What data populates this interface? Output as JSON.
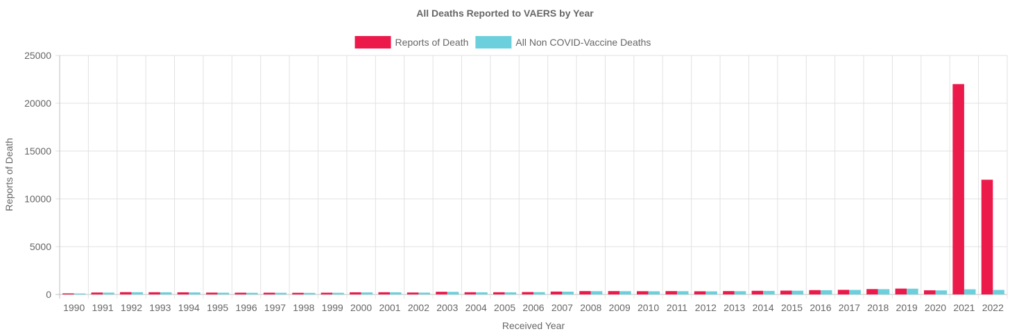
{
  "chart_data": {
    "type": "bar",
    "title": "All Deaths Reported to VAERS by Year",
    "xlabel": "Received Year",
    "ylabel": "Reports of Death",
    "ylim": [
      0,
      25000
    ],
    "yticks": [
      0,
      5000,
      10000,
      15000,
      20000,
      25000
    ],
    "grid": true,
    "legend_position": "top-center",
    "categories": [
      "1990",
      "1991",
      "1992",
      "1993",
      "1994",
      "1995",
      "1996",
      "1997",
      "1998",
      "1999",
      "2000",
      "2001",
      "2002",
      "2003",
      "2004",
      "2005",
      "2006",
      "2007",
      "2008",
      "2009",
      "2010",
      "2011",
      "2012",
      "2013",
      "2014",
      "2015",
      "2016",
      "2017",
      "2018",
      "2019",
      "2020",
      "2021",
      "2022"
    ],
    "series": [
      {
        "name": "Reports of Death",
        "color": "#ec194b",
        "values": [
          110,
          200,
          240,
          230,
          220,
          190,
          180,
          180,
          170,
          180,
          220,
          230,
          200,
          280,
          230,
          230,
          250,
          300,
          350,
          350,
          340,
          350,
          330,
          350,
          380,
          400,
          450,
          480,
          560,
          610,
          430,
          22000,
          12000
        ]
      },
      {
        "name": "All Non COVID-Vaccine Deaths",
        "color": "#6bd0dc",
        "values": [
          100,
          190,
          230,
          220,
          210,
          180,
          170,
          170,
          160,
          170,
          210,
          220,
          190,
          270,
          220,
          220,
          240,
          290,
          340,
          340,
          330,
          340,
          320,
          340,
          370,
          390,
          440,
          470,
          550,
          600,
          420,
          540,
          470
        ]
      }
    ]
  }
}
